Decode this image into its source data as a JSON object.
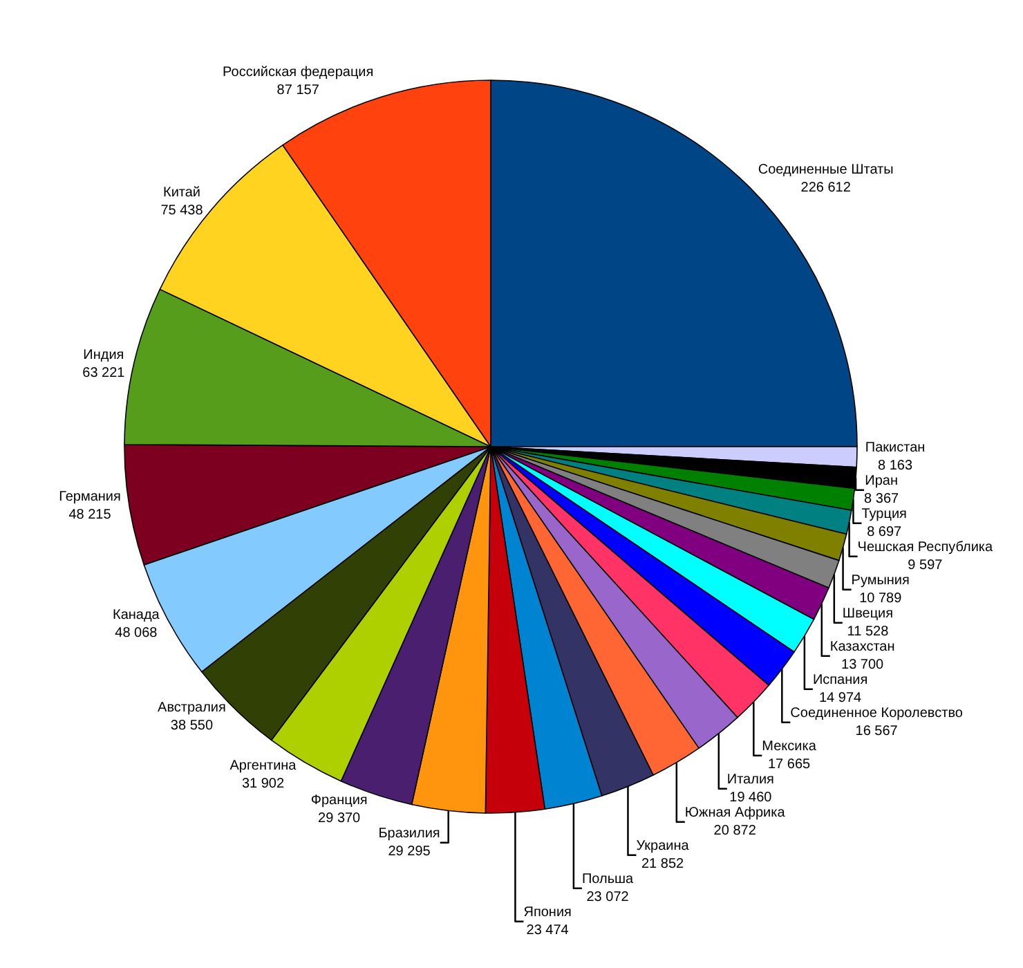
{
  "chart_data": {
    "type": "pie",
    "categories": [
      "Соединенные Штаты",
      "Пакистан",
      "Иран",
      "Турция",
      "Чешская Республика",
      "Румыния",
      "Швеция",
      "Казахстан",
      "Испания",
      "Соединенное Королевство",
      "Мексика",
      "Италия",
      "Южная Африка",
      "Украина",
      "Польша",
      "Япония",
      "Бразилия",
      "Франция",
      "Аргентина",
      "Австралия",
      "Канада",
      "Германия",
      "Индия",
      "Китай",
      "Российская федерация"
    ],
    "values": [
      226612,
      8163,
      8367,
      8697,
      9597,
      10789,
      11528,
      13700,
      14974,
      16567,
      17665,
      19460,
      20872,
      21852,
      23072,
      23474,
      29295,
      29370,
      31902,
      38550,
      48068,
      48215,
      63221,
      75438,
      87157
    ],
    "value_labels": [
      "226 612",
      "8 163",
      "8 367",
      "8 697",
      "9 597",
      "10 789",
      "11 528",
      "13 700",
      "14 974",
      "16 567",
      "17 665",
      "19 460",
      "20 872",
      "21 852",
      "23 072",
      "23 474",
      "29 295",
      "29 370",
      "31 902",
      "38 550",
      "48 068",
      "48 215",
      "63 221",
      "75 438",
      "87 157"
    ],
    "colors": [
      "#004586",
      "#ccccff",
      "#000000",
      "#008000",
      "#008080",
      "#808000",
      "#808080",
      "#800080",
      "#00ffff",
      "#0000ff",
      "#ff3366",
      "#9966cc",
      "#ff6633",
      "#333366",
      "#0084d1",
      "#c5000b",
      "#ff950e",
      "#4b1f6f",
      "#aecf00",
      "#314004",
      "#83caff",
      "#7e0021",
      "#579d1c",
      "#ffd320",
      "#ff420e"
    ],
    "legend": false
  }
}
